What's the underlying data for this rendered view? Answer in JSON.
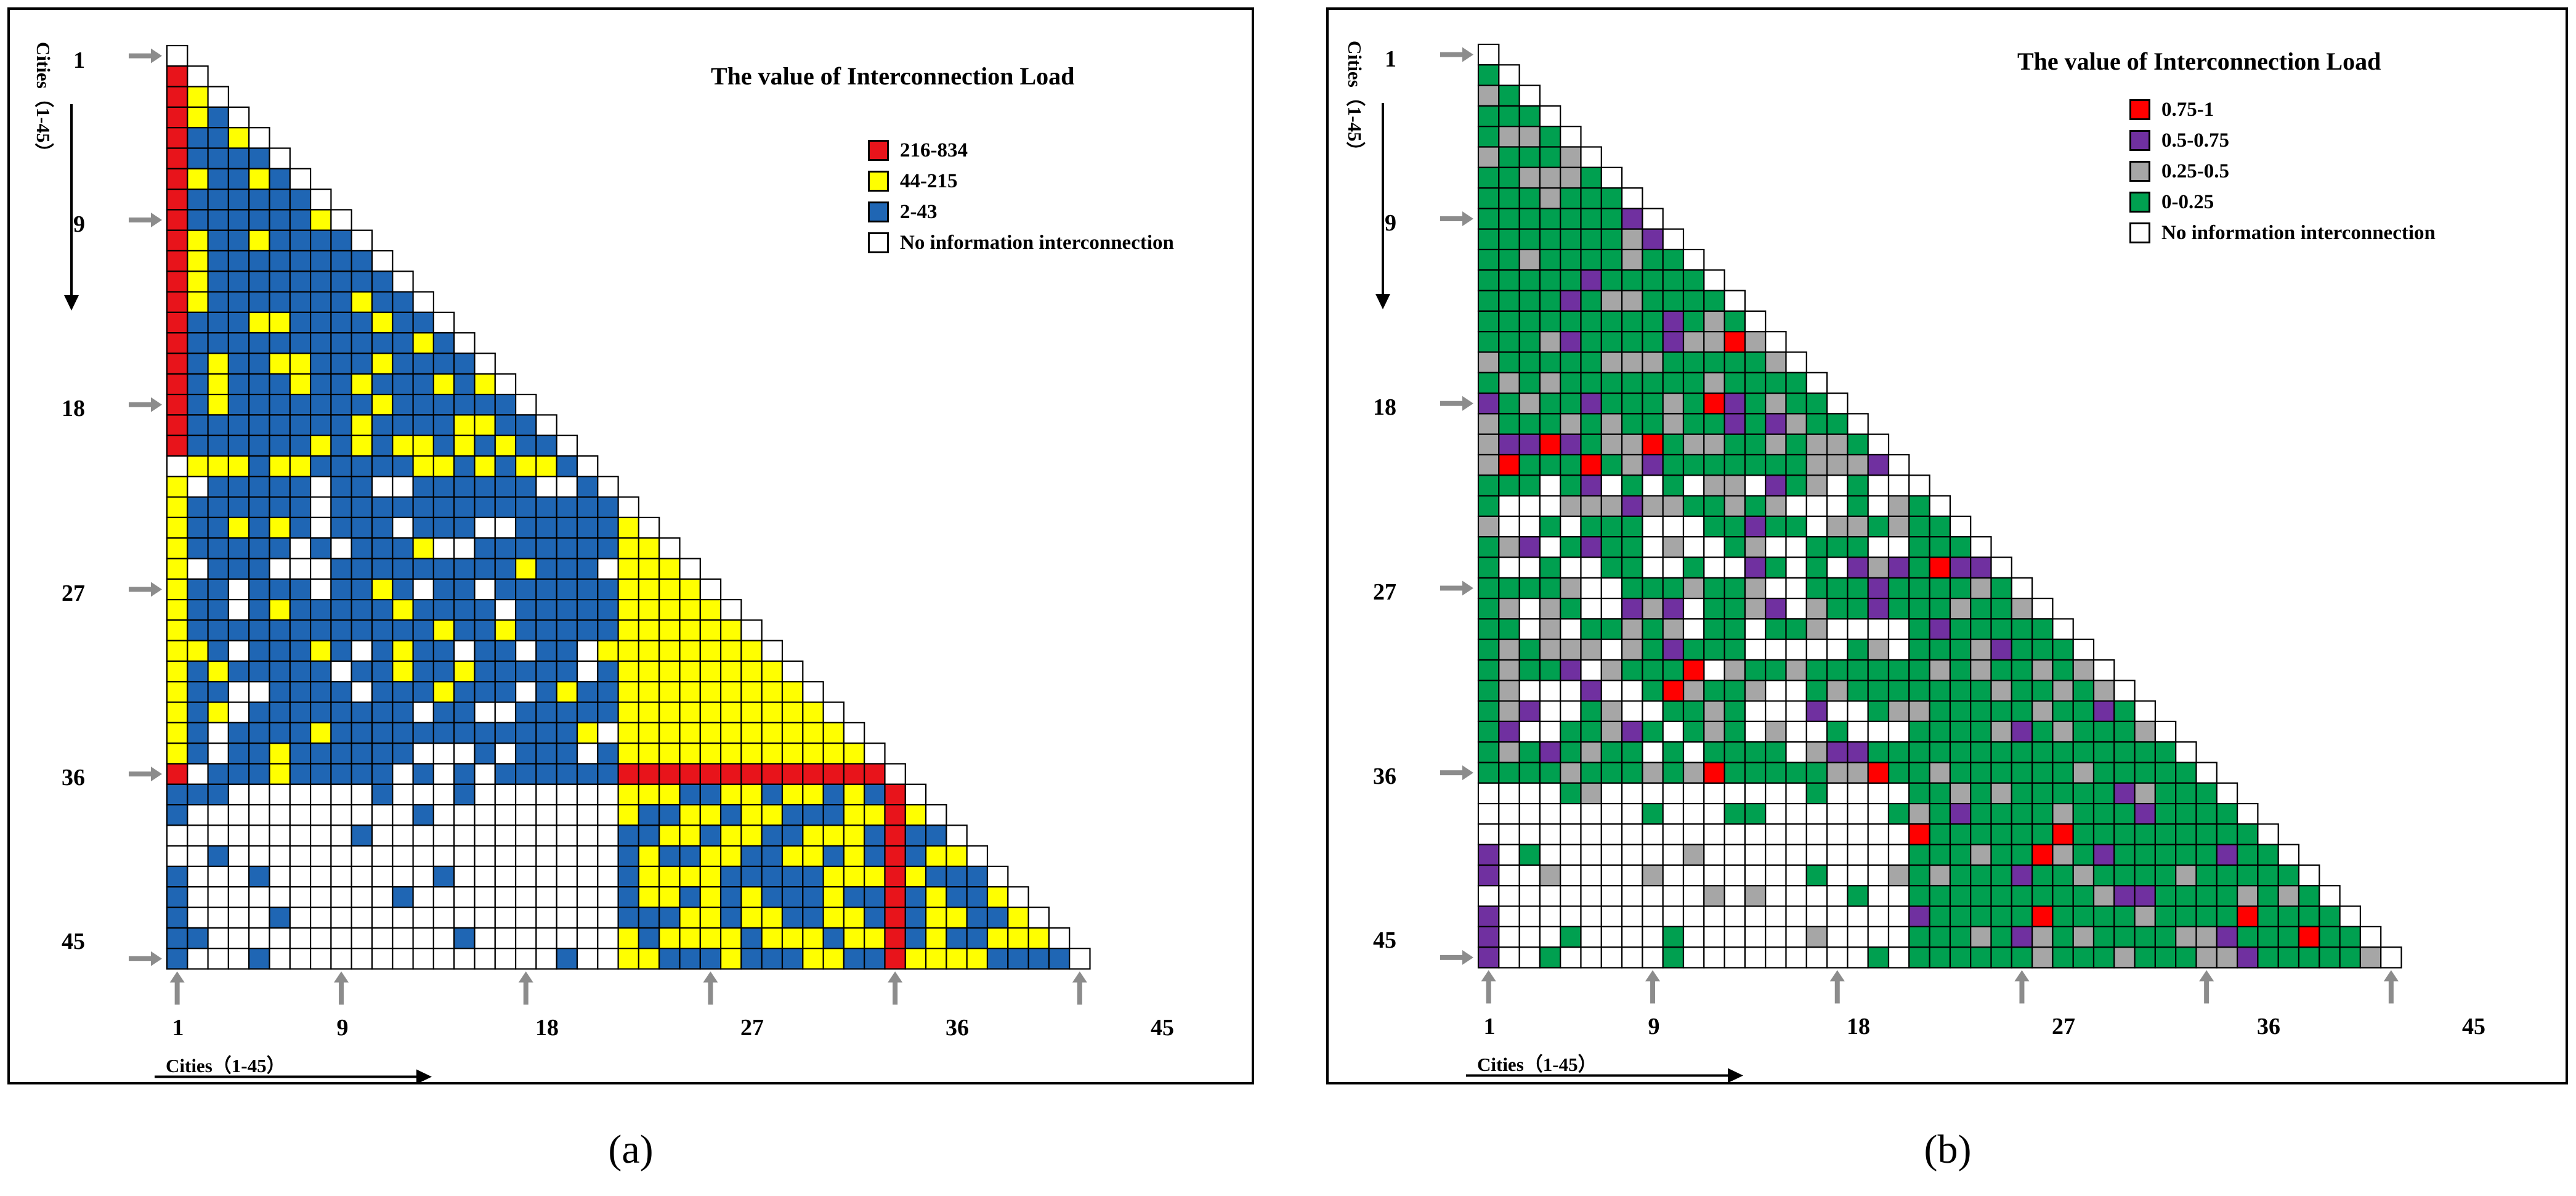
{
  "chart_data": [
    {
      "type": "heatmap",
      "panel": "a",
      "title": "The value of Interconnection Load",
      "caption": "(a)",
      "matrix": "lower-triangular, 45 x 45",
      "x_axis": {
        "label": "Cities（1-45）",
        "ticks": [
          "1",
          "9",
          "18",
          "27",
          "36",
          "45"
        ]
      },
      "y_axis": {
        "label": "Cities（1-45）",
        "ticks": [
          "1",
          "9",
          "18",
          "27",
          "36",
          "45"
        ]
      },
      "legend": [
        {
          "label": "216-834",
          "color": "#e8141b"
        },
        {
          "label": "44-215",
          "color": "#ffff00"
        },
        {
          "label": "2-43",
          "color": "#1f66b4"
        },
        {
          "label": "No information interconnection",
          "color": "#ffffff"
        }
      ]
    },
    {
      "type": "heatmap",
      "panel": "b",
      "title": "The value of Interconnection Load",
      "caption": "(b)",
      "matrix": "lower-triangular, 45 x 45",
      "x_axis": {
        "label": "Cities（1-45）",
        "ticks": [
          "1",
          "9",
          "18",
          "27",
          "36",
          "45"
        ]
      },
      "y_axis": {
        "label": "Cities（1-45）",
        "ticks": [
          "1",
          "9",
          "18",
          "27",
          "36",
          "45"
        ]
      },
      "legend": [
        {
          "label": "0.75-1",
          "color": "#ff0000"
        },
        {
          "label": "0.5-0.75",
          "color": "#7030a0"
        },
        {
          "label": "0.25-0.5",
          "color": "#a6a6a6"
        },
        {
          "label": "0-0.25",
          "color": "#00a050"
        },
        {
          "label": "No information interconnection",
          "color": "#ffffff"
        }
      ]
    }
  ]
}
